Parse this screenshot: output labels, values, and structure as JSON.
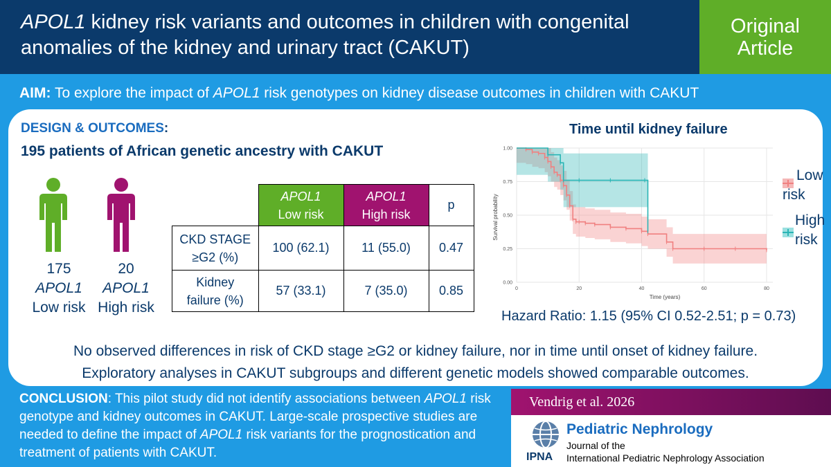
{
  "header": {
    "title_gene": "APOL1",
    "title_rest": " kidney risk variants and outcomes in children with congenital anomalies of the kidney and urinary tract (CAKUT)",
    "badge_line1": "Original",
    "badge_line2": "Article"
  },
  "aim": {
    "label": "AIM:",
    "text_before": " To explore the impact of ",
    "gene": "APOL1",
    "text_after": " risk genotypes on kidney disease outcomes in children with CAKUT"
  },
  "design": {
    "label": "DESIGN & OUTCOMES",
    "colon": ":",
    "patients": "195 patients of African genetic ancestry with CAKUT"
  },
  "groups": [
    {
      "count": "175",
      "gene": "APOL1",
      "risk": "Low risk",
      "color": "#5fae28"
    },
    {
      "count": "20",
      "gene": "APOL1",
      "risk": "High risk",
      "color": "#a0136f"
    }
  ],
  "table": {
    "headers": [
      {
        "gene": "APOL1",
        "risk": "Low risk"
      },
      {
        "gene": "APOL1",
        "risk": "High risk"
      },
      {
        "label": "p"
      }
    ],
    "rows": [
      {
        "line1": "CKD STAGE",
        "line2": "≥G2 (%)",
        "low": "100 (62.1)",
        "high": "11 (55.0)",
        "p": "0.47"
      },
      {
        "line1": "Kidney",
        "line2": "failure (%)",
        "low": "57 (33.1)",
        "high": "7 (35.0)",
        "p": "0.85"
      }
    ]
  },
  "chart": {
    "title": "Time until kidney failure",
    "ylabel": "Survival probability",
    "xlabel": "Time (years)",
    "legend_low_1": "Low",
    "legend_low_2": "risk",
    "legend_high_1": "High",
    "legend_high_2": "risk",
    "hazard": "Hazard Ratio: 1.15 (95% CI 0.52-2.51; p = 0.73)",
    "colors": {
      "low": "#f08080",
      "high": "#2ab5b5"
    }
  },
  "chart_data": {
    "type": "line",
    "title": "Time until kidney failure",
    "xlabel": "Time (years)",
    "ylabel": "Survival probability",
    "xlim": [
      0,
      82
    ],
    "ylim": [
      0,
      1.0
    ],
    "x_ticks": [
      "0",
      "20",
      "40",
      "60",
      "80"
    ],
    "y_ticks": [
      "0.00",
      "0.25",
      "0.50",
      "0.75",
      "1.00"
    ],
    "grid": true,
    "legend": "right",
    "series": [
      {
        "name": "Low risk",
        "x": [
          0,
          3,
          5,
          7,
          9,
          10,
          11,
          12,
          13,
          14,
          15,
          16,
          17,
          18,
          19,
          20,
          22,
          25,
          30,
          35,
          40,
          42,
          48,
          50,
          60,
          70,
          80
        ],
        "y": [
          1.0,
          0.99,
          0.97,
          0.96,
          0.93,
          0.9,
          0.86,
          0.82,
          0.8,
          0.76,
          0.72,
          0.65,
          0.57,
          0.47,
          0.45,
          0.45,
          0.44,
          0.43,
          0.41,
          0.4,
          0.38,
          0.36,
          0.3,
          0.25,
          0.25,
          0.25,
          0.24
        ]
      },
      {
        "name": "High risk",
        "x": [
          0,
          10,
          14,
          15,
          20,
          30,
          41,
          42
        ],
        "y": [
          1.0,
          0.95,
          0.89,
          0.76,
          0.76,
          0.76,
          0.76,
          0.38
        ]
      }
    ]
  },
  "findings": {
    "line1": "No observed differences in risk of CKD stage ≥G2 or kidney failure, nor in time until onset of kidney failure.",
    "line2": "Exploratory analyses in CAKUT subgroups and different genetic models showed comparable outcomes."
  },
  "conclusion": {
    "label": "CONCLUSION",
    "p1": ": This pilot study did not identify associations between ",
    "gene1": "APOL1",
    "p2": " risk genotype and kidney outcomes in CAKUT. Large-scale prospective studies are needed to define the impact of ",
    "gene2": "APOL1",
    "p3": " risk variants for the prognostication and treatment of patients with CAKUT."
  },
  "citation": "Vendrig et al. 2026",
  "journal": {
    "name": "Pediatric Nephrology",
    "sub1": "Journal of the",
    "sub2": "International Pediatric Nephrology Association",
    "logo_text": "IPNA"
  }
}
